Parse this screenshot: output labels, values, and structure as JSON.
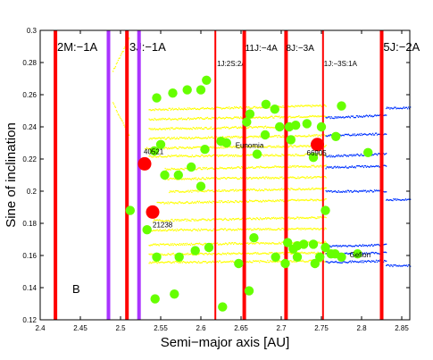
{
  "chart_data": {
    "type": "scatter",
    "title": "",
    "xlabel": "Semi−major axis [AU]",
    "ylabel": "Sine of inclination",
    "xlim": [
      2.4,
      2.86
    ],
    "ylim": [
      0.12,
      0.3
    ],
    "xticks": [
      2.4,
      2.45,
      2.5,
      2.55,
      2.6,
      2.65,
      2.7,
      2.75,
      2.8,
      2.85
    ],
    "xtick_labels": [
      "2.4",
      "2.45",
      "2.5",
      "2.55",
      "2.6",
      "2.65",
      "2.7",
      "2.75",
      "2.8",
      "2.85"
    ],
    "yticks": [
      0.12,
      0.14,
      0.16,
      0.18,
      0.2,
      0.22,
      0.24,
      0.26,
      0.28,
      0.3
    ],
    "ytick_labels": [
      "0.12",
      "0.14",
      "0.16",
      "0.18",
      "0.2",
      "0.22",
      "0.24",
      "0.26",
      "0.28",
      "0.3"
    ],
    "grid": false,
    "panel_label": "B",
    "colors": {
      "resonance_line": "#ff0000",
      "resonance_line_alt": "#aa33ff",
      "family_members": "#ffff00",
      "background_members": "#0033ff",
      "green_bodies": "#66ff00",
      "named_bodies": "#ff0000"
    },
    "resonances": [
      {
        "a": 2.419,
        "label": "2M:−1A",
        "label_a": 2.42,
        "label_size": 13,
        "color": "#ff0000",
        "width": 4
      },
      {
        "a": 2.485,
        "label": "",
        "color": "#aa33ff",
        "width": 4
      },
      {
        "a": 2.508,
        "label": "3J:−1A",
        "label_a": 2.51,
        "label_size": 13,
        "color": "#ff0000",
        "width": 4
      },
      {
        "a": 2.523,
        "label": "",
        "color": "#aa33ff",
        "width": 4
      },
      {
        "a": 2.618,
        "label": "1J:2S:2A",
        "label_a": 2.619,
        "label_size": 8,
        "label_row": 2,
        "color": "#ff0000",
        "width": 2
      },
      {
        "a": 2.654,
        "label": "11J:−4A",
        "label_a": 2.654,
        "label_size": 10,
        "color": "#ff0000",
        "width": 4
      },
      {
        "a": 2.706,
        "label": "8J:−3A",
        "label_a": 2.705,
        "label_size": 10,
        "color": "#ff0000",
        "width": 4
      },
      {
        "a": 2.752,
        "label": "1J:−3S:1A",
        "label_a": 2.752,
        "label_size": 8,
        "label_row": 2,
        "color": "#ff0000",
        "width": 2
      },
      {
        "a": 2.825,
        "label": "5J:−2A",
        "label_a": 2.826,
        "label_size": 13,
        "color": "#ff0000",
        "width": 4
      }
    ],
    "named_bodies": [
      {
        "name": "40521",
        "a": 2.53,
        "sini": 0.217
      },
      {
        "name": "21238",
        "a": 2.54,
        "sini": 0.187
      },
      {
        "name": "66905",
        "a": 2.745,
        "sini": 0.229
      },
      {
        "name": "Eunomia",
        "a": 2.643,
        "sini": 0.227,
        "marker": false
      },
      {
        "name": "Gefion",
        "a": 2.785,
        "sini": 0.159,
        "marker": false
      }
    ],
    "green_bodies": [
      {
        "a": 2.545,
        "sini": 0.258
      },
      {
        "a": 2.565,
        "sini": 0.261
      },
      {
        "a": 2.583,
        "sini": 0.263
      },
      {
        "a": 2.6,
        "sini": 0.263
      },
      {
        "a": 2.607,
        "sini": 0.269
      },
      {
        "a": 2.55,
        "sini": 0.229
      },
      {
        "a": 2.542,
        "sini": 0.225
      },
      {
        "a": 2.605,
        "sini": 0.226
      },
      {
        "a": 2.588,
        "sini": 0.215
      },
      {
        "a": 2.572,
        "sini": 0.21
      },
      {
        "a": 2.555,
        "sini": 0.21
      },
      {
        "a": 2.6,
        "sini": 0.203
      },
      {
        "a": 2.512,
        "sini": 0.188
      },
      {
        "a": 2.533,
        "sini": 0.176
      },
      {
        "a": 2.625,
        "sini": 0.231
      },
      {
        "a": 2.632,
        "sini": 0.23
      },
      {
        "a": 2.67,
        "sini": 0.223
      },
      {
        "a": 2.657,
        "sini": 0.243
      },
      {
        "a": 2.661,
        "sini": 0.248
      },
      {
        "a": 2.68,
        "sini": 0.235
      },
      {
        "a": 2.681,
        "sini": 0.254
      },
      {
        "a": 2.692,
        "sini": 0.251
      },
      {
        "a": 2.698,
        "sini": 0.24
      },
      {
        "a": 2.71,
        "sini": 0.24
      },
      {
        "a": 2.712,
        "sini": 0.232
      },
      {
        "a": 2.718,
        "sini": 0.241
      },
      {
        "a": 2.732,
        "sini": 0.242
      },
      {
        "a": 2.75,
        "sini": 0.24
      },
      {
        "a": 2.775,
        "sini": 0.253
      },
      {
        "a": 2.74,
        "sini": 0.221
      },
      {
        "a": 2.768,
        "sini": 0.234
      },
      {
        "a": 2.808,
        "sini": 0.224
      },
      {
        "a": 2.755,
        "sini": 0.188
      },
      {
        "a": 2.666,
        "sini": 0.171
      },
      {
        "a": 2.708,
        "sini": 0.168
      },
      {
        "a": 2.715,
        "sini": 0.164
      },
      {
        "a": 2.72,
        "sini": 0.166
      },
      {
        "a": 2.728,
        "sini": 0.167
      },
      {
        "a": 2.74,
        "sini": 0.167
      },
      {
        "a": 2.755,
        "sini": 0.165
      },
      {
        "a": 2.762,
        "sini": 0.161
      },
      {
        "a": 2.767,
        "sini": 0.161
      },
      {
        "a": 2.775,
        "sini": 0.159
      },
      {
        "a": 2.795,
        "sini": 0.161
      },
      {
        "a": 2.742,
        "sini": 0.155
      },
      {
        "a": 2.748,
        "sini": 0.159
      },
      {
        "a": 2.72,
        "sini": 0.159
      },
      {
        "a": 2.705,
        "sini": 0.155
      },
      {
        "a": 2.693,
        "sini": 0.159
      },
      {
        "a": 2.647,
        "sini": 0.155
      },
      {
        "a": 2.61,
        "sini": 0.165
      },
      {
        "a": 2.593,
        "sini": 0.163
      },
      {
        "a": 2.573,
        "sini": 0.159
      },
      {
        "a": 2.545,
        "sini": 0.159
      },
      {
        "a": 2.543,
        "sini": 0.133
      },
      {
        "a": 2.567,
        "sini": 0.136
      },
      {
        "a": 2.66,
        "sini": 0.138
      },
      {
        "a": 2.627,
        "sini": 0.128
      }
    ],
    "family_bands": [
      {
        "a_min": 2.535,
        "a_max": 2.755,
        "sini": 0.251,
        "tilt": 0.0025
      },
      {
        "a_min": 2.535,
        "a_max": 2.755,
        "sini": 0.245,
        "tilt": 0.002
      },
      {
        "a_min": 2.535,
        "a_max": 2.72,
        "sini": 0.239,
        "tilt": 0.0015
      },
      {
        "a_min": 2.535,
        "a_max": 2.755,
        "sini": 0.233,
        "tilt": 0.002
      },
      {
        "a_min": 2.53,
        "a_max": 2.755,
        "sini": 0.227,
        "tilt": 0.0015
      },
      {
        "a_min": 2.535,
        "a_max": 2.755,
        "sini": 0.222,
        "tilt": 0.001
      },
      {
        "a_min": 2.555,
        "a_max": 2.755,
        "sini": 0.214,
        "tilt": 0.002
      },
      {
        "a_min": 2.555,
        "a_max": 2.755,
        "sini": 0.208,
        "tilt": 0.001
      },
      {
        "a_min": 2.56,
        "a_max": 2.755,
        "sini": 0.2,
        "tilt": 0.002
      },
      {
        "a_min": 2.545,
        "a_max": 2.755,
        "sini": 0.193,
        "tilt": 0.002
      },
      {
        "a_min": 2.54,
        "a_max": 2.755,
        "sini": 0.182,
        "tilt": 0.002
      },
      {
        "a_min": 2.535,
        "a_max": 2.755,
        "sini": 0.176,
        "tilt": 0.001
      },
      {
        "a_min": 2.535,
        "a_max": 2.755,
        "sini": 0.167,
        "tilt": 0.0015
      },
      {
        "a_min": 2.535,
        "a_max": 2.755,
        "sini": 0.161,
        "tilt": 0.001
      },
      {
        "a_min": 2.535,
        "a_max": 2.755,
        "sini": 0.156,
        "tilt": 0.001
      },
      {
        "a_min": 2.49,
        "a_max": 2.51,
        "sini": 0.275,
        "tilt": 0.02
      },
      {
        "a_min": 2.49,
        "a_max": 2.51,
        "sini": 0.255,
        "tilt": -0.02
      }
    ],
    "background_bands": [
      {
        "a_min": 2.755,
        "a_max": 2.83,
        "sini": 0.246,
        "tilt": 0.0015
      },
      {
        "a_min": 2.755,
        "a_max": 2.83,
        "sini": 0.235,
        "tilt": 0.001
      },
      {
        "a_min": 2.755,
        "a_max": 2.83,
        "sini": 0.222,
        "tilt": 0.0015
      },
      {
        "a_min": 2.755,
        "a_max": 2.83,
        "sini": 0.215,
        "tilt": 0.001
      },
      {
        "a_min": 2.755,
        "a_max": 2.83,
        "sini": 0.2,
        "tilt": 0.0005
      },
      {
        "a_min": 2.755,
        "a_max": 2.83,
        "sini": 0.166,
        "tilt": 0.001
      },
      {
        "a_min": 2.755,
        "a_max": 2.83,
        "sini": 0.161,
        "tilt": 0.001
      },
      {
        "a_min": 2.755,
        "a_max": 2.83,
        "sini": 0.156,
        "tilt": 0.001
      },
      {
        "a_min": 2.83,
        "a_max": 2.86,
        "sini": 0.252,
        "tilt": 0.0
      },
      {
        "a_min": 2.83,
        "a_max": 2.86,
        "sini": 0.195,
        "tilt": 0.0
      },
      {
        "a_min": 2.83,
        "a_max": 2.86,
        "sini": 0.154,
        "tilt": 0.0
      }
    ]
  }
}
